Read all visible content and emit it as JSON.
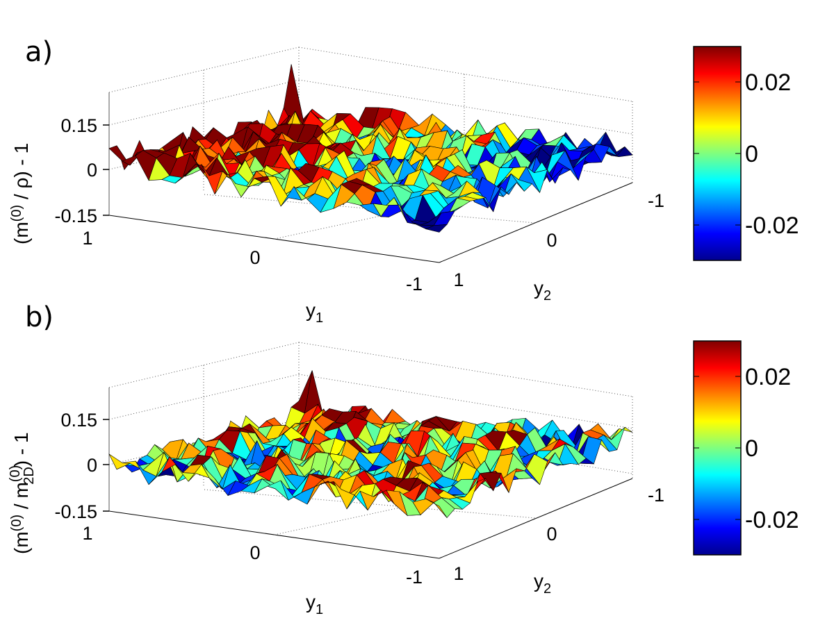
{
  "chart_data": [
    {
      "type": "surface",
      "panel_label": "a)",
      "zlabel_main": "(m",
      "zlabel_sup": "(0)",
      "zlabel_rest": " / ρ) - 1",
      "xlabel_main": "y",
      "xlabel_sub": "1",
      "ylabel_main": "y",
      "ylabel_sub": "2",
      "x_ticks": [
        "1",
        "0",
        "-1"
      ],
      "y_ticks": [
        "1",
        "0",
        "-1"
      ],
      "z_ticks": [
        "0.15",
        "0",
        "-0.15"
      ],
      "xlim": [
        -1,
        1
      ],
      "ylim": [
        -1,
        1
      ],
      "zlim": [
        -0.15,
        0.15
      ],
      "colormap": "jet",
      "clim": [
        -0.03,
        0.03
      ],
      "colorbar_ticks": [
        "0.02",
        "0",
        "-0.02"
      ],
      "grid": true,
      "trend": {
        "corner_y1_1_y2_1": 0.03,
        "corner_y1_neg1_y2_1": -0.01,
        "corner_y1_1_y2_neg1": 0.03,
        "corner_y1_neg1_y2_neg1": -0.03,
        "noise_amplitude": 0.05,
        "peak": {
          "y1": 1.0,
          "y2": -0.9,
          "z": 0.2
        }
      }
    },
    {
      "type": "surface",
      "panel_label": "b)",
      "zlabel_main": "(m",
      "zlabel_sup": "(0)",
      "zlabel_mid": " / m",
      "zlabel_sup2": "(0)",
      "zlabel_sub2": "2D",
      "zlabel_rest": ") - 1",
      "xlabel_main": "y",
      "xlabel_sub": "1",
      "ylabel_main": "y",
      "ylabel_sub": "2",
      "x_ticks": [
        "1",
        "0",
        "-1"
      ],
      "y_ticks": [
        "1",
        "0",
        "-1"
      ],
      "z_ticks": [
        "0.15",
        "0",
        "-0.15"
      ],
      "xlim": [
        -1,
        1
      ],
      "ylim": [
        -1,
        1
      ],
      "zlim": [
        -0.15,
        0.15
      ],
      "colormap": "jet",
      "clim": [
        -0.03,
        0.03
      ],
      "colorbar_ticks": [
        "0.02",
        "0",
        "-0.02"
      ],
      "grid": true,
      "trend": {
        "corner_y1_1_y2_1": -0.005,
        "corner_y1_neg1_y2_1": 0.01,
        "corner_y1_1_y2_neg1": 0.02,
        "corner_y1_neg1_y2_neg1": -0.01,
        "noise_amplitude": 0.05,
        "peak": {
          "y1": 0.9,
          "y2": -1.0,
          "z": 0.16
        }
      }
    }
  ]
}
